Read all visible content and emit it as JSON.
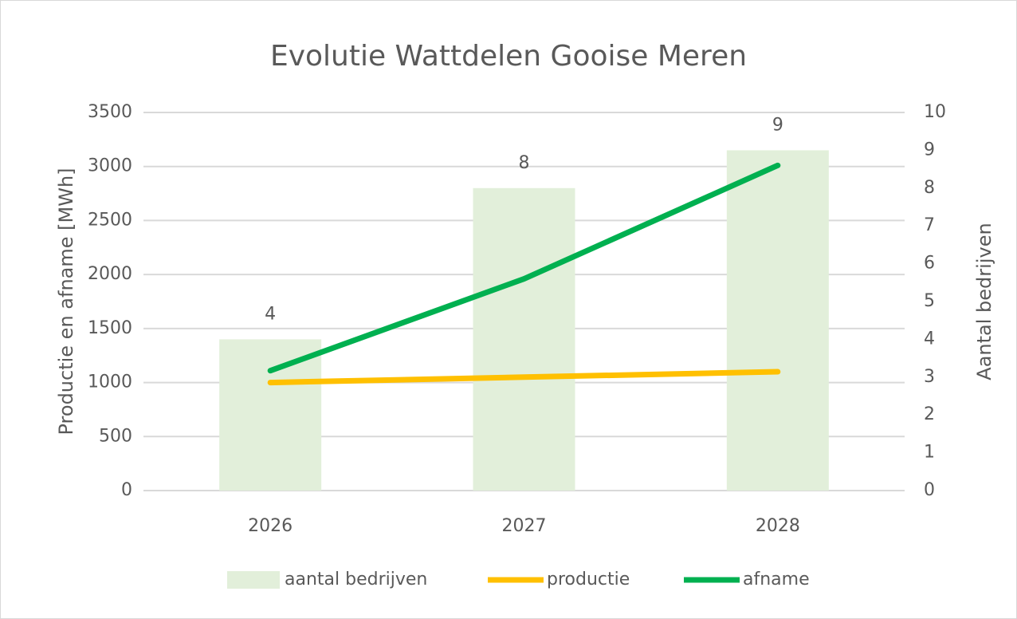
{
  "chart_data": {
    "type": "combo",
    "title": "Evolutie Wattdelen Gooise Meren",
    "categories": [
      "2026",
      "2027",
      "2028"
    ],
    "series": [
      {
        "name": "aantal bedrijven",
        "type": "bar",
        "axis": "y2",
        "color": "#e2efda",
        "values": [
          4,
          8,
          9
        ],
        "data_labels": true
      },
      {
        "name": "productie",
        "type": "line",
        "axis": "y",
        "color": "#ffc000",
        "values": [
          1000,
          1050,
          1100
        ]
      },
      {
        "name": "afname",
        "type": "line",
        "axis": "y",
        "color": "#00b050",
        "values": [
          1110,
          1960,
          3010
        ]
      }
    ],
    "ylabel": "Productie en afname [MWh]",
    "y2label": "Aantal bedrijven",
    "ylim": [
      0,
      3500
    ],
    "yticks": [
      0,
      500,
      1000,
      1500,
      2000,
      2500,
      3000,
      3500
    ],
    "y2lim": [
      0,
      10
    ],
    "y2ticks": [
      0,
      1,
      2,
      3,
      4,
      5,
      6,
      7,
      8,
      9,
      10
    ],
    "grid": true,
    "legend": "bottom"
  }
}
